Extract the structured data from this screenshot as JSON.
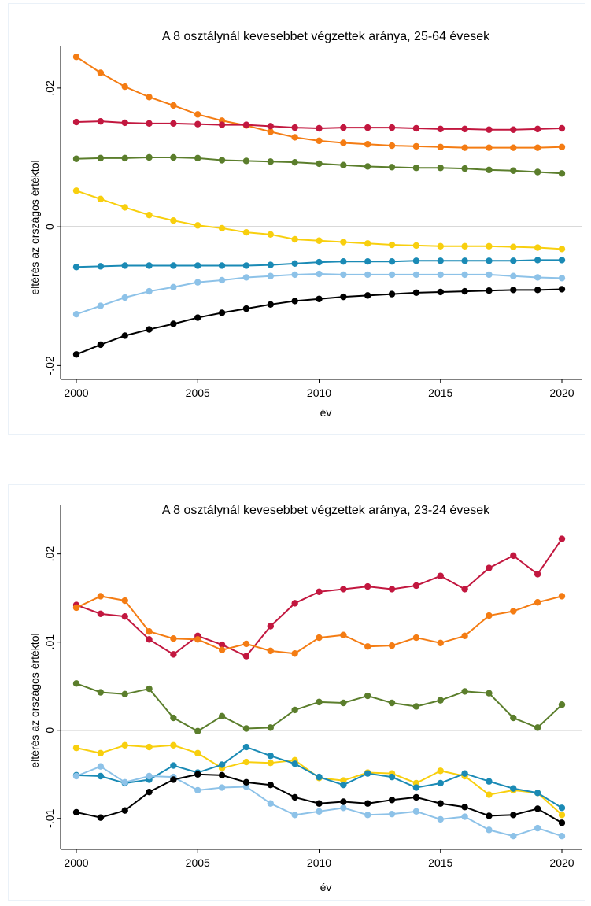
{
  "chart_data": [
    {
      "type": "line",
      "title": "A 8 osztálynál kevesebbet végzettek aránya, 25-64 évesek",
      "xlabel": "év",
      "ylabel": "eltérés az országos értéktol",
      "xlim": [
        2000,
        2020
      ],
      "ylim": [
        -0.022,
        0.026
      ],
      "xticks": [
        2000,
        2005,
        2010,
        2015,
        2020
      ],
      "yticks": [
        -0.02,
        0,
        0.02
      ],
      "yticklabels": [
        "-.02",
        "0",
        ".02"
      ],
      "zero_line": true,
      "grid": false,
      "x": [
        2000,
        2001,
        2002,
        2003,
        2004,
        2005,
        2006,
        2007,
        2008,
        2009,
        2010,
        2011,
        2012,
        2013,
        2014,
        2015,
        2016,
        2017,
        2018,
        2019,
        2020
      ],
      "series": [
        {
          "color": "#f47c13",
          "values": [
            0.0245,
            0.0222,
            0.0202,
            0.0187,
            0.0175,
            0.0162,
            0.0153,
            0.0146,
            0.0137,
            0.0129,
            0.0124,
            0.0121,
            0.0119,
            0.0117,
            0.0116,
            0.0115,
            0.0114,
            0.0114,
            0.0114,
            0.0114,
            0.0115
          ]
        },
        {
          "color": "#c2173f",
          "values": [
            0.0151,
            0.0152,
            0.015,
            0.0149,
            0.0149,
            0.0148,
            0.0147,
            0.0147,
            0.0145,
            0.0143,
            0.0142,
            0.0143,
            0.0143,
            0.0143,
            0.0142,
            0.0141,
            0.0141,
            0.014,
            0.014,
            0.0141,
            0.0142
          ]
        },
        {
          "color": "#5b7e2c",
          "values": [
            0.0098,
            0.0099,
            0.0099,
            0.01,
            0.01,
            0.0099,
            0.0096,
            0.0095,
            0.0094,
            0.0093,
            0.0091,
            0.0089,
            0.0087,
            0.0086,
            0.0085,
            0.0085,
            0.0084,
            0.0082,
            0.0081,
            0.0079,
            0.0077
          ]
        },
        {
          "color": "#f8cf0e",
          "values": [
            0.0052,
            0.004,
            0.0028,
            0.0017,
            0.0009,
            0.0002,
            -0.0002,
            -0.0008,
            -0.0011,
            -0.0018,
            -0.002,
            -0.0022,
            -0.0024,
            -0.0026,
            -0.0027,
            -0.0028,
            -0.0028,
            -0.0028,
            -0.0029,
            -0.003,
            -0.0032
          ]
        },
        {
          "color": "#1a8ab5",
          "values": [
            -0.0058,
            -0.0057,
            -0.0056,
            -0.0056,
            -0.0056,
            -0.0056,
            -0.0056,
            -0.0056,
            -0.0055,
            -0.0053,
            -0.0051,
            -0.005,
            -0.005,
            -0.005,
            -0.0049,
            -0.0049,
            -0.0049,
            -0.0049,
            -0.0049,
            -0.0048,
            -0.0048
          ]
        },
        {
          "color": "#8dc2e8",
          "values": [
            -0.0126,
            -0.0114,
            -0.0102,
            -0.0093,
            -0.0087,
            -0.008,
            -0.0077,
            -0.0073,
            -0.0071,
            -0.0069,
            -0.0068,
            -0.0069,
            -0.0069,
            -0.0069,
            -0.0069,
            -0.0069,
            -0.0069,
            -0.0069,
            -0.0071,
            -0.0073,
            -0.0074
          ]
        },
        {
          "color": "#000000",
          "values": [
            -0.0184,
            -0.017,
            -0.0157,
            -0.0148,
            -0.014,
            -0.0131,
            -0.0124,
            -0.0118,
            -0.0112,
            -0.0107,
            -0.0104,
            -0.0101,
            -0.0099,
            -0.0097,
            -0.0095,
            -0.0094,
            -0.0093,
            -0.0092,
            -0.0091,
            -0.0091,
            -0.009
          ]
        }
      ]
    },
    {
      "type": "line",
      "title": "A 8 osztálynál kevesebbet végzettek aránya, 23-24 évesek",
      "xlabel": "év",
      "ylabel": "eltérés az országos értéktol",
      "xlim": [
        2000,
        2020
      ],
      "ylim": [
        -0.0135,
        0.0255
      ],
      "xticks": [
        2000,
        2005,
        2010,
        2015,
        2020
      ],
      "yticks": [
        -0.01,
        0,
        0.01,
        0.02
      ],
      "yticklabels": [
        "-.01",
        "0",
        ".01",
        ".02"
      ],
      "zero_line": true,
      "grid": false,
      "x": [
        2000,
        2001,
        2002,
        2003,
        2004,
        2005,
        2006,
        2007,
        2008,
        2009,
        2010,
        2011,
        2012,
        2013,
        2014,
        2015,
        2016,
        2017,
        2018,
        2019,
        2020
      ],
      "series": [
        {
          "color": "#c2173f",
          "values": [
            0.0142,
            0.0132,
            0.0129,
            0.0103,
            0.0086,
            0.0107,
            0.0097,
            0.0084,
            0.0118,
            0.0144,
            0.0157,
            0.016,
            0.0163,
            0.016,
            0.0164,
            0.0175,
            0.016,
            0.0184,
            0.0198,
            0.0177,
            0.0217
          ]
        },
        {
          "color": "#f47c13",
          "values": [
            0.0139,
            0.0152,
            0.0147,
            0.0112,
            0.0104,
            0.0103,
            0.0091,
            0.0098,
            0.009,
            0.0087,
            0.0105,
            0.0108,
            0.0095,
            0.0096,
            0.0105,
            0.0099,
            0.0107,
            0.013,
            0.0135,
            0.0145,
            0.0152
          ]
        },
        {
          "color": "#5b7e2c",
          "values": [
            0.0053,
            0.0043,
            0.0041,
            0.0047,
            0.0014,
            -0.0001,
            0.0016,
            0.0002,
            0.0003,
            0.0023,
            0.0032,
            0.0031,
            0.0039,
            0.0031,
            0.0027,
            0.0034,
            0.0044,
            0.0042,
            0.0014,
            0.0003,
            0.0029
          ]
        },
        {
          "color": "#f8cf0e",
          "values": [
            -0.002,
            -0.0026,
            -0.0017,
            -0.0019,
            -0.0017,
            -0.0026,
            -0.0043,
            -0.0036,
            -0.0037,
            -0.0034,
            -0.0054,
            -0.0057,
            -0.0048,
            -0.0049,
            -0.006,
            -0.0046,
            -0.0052,
            -0.0073,
            -0.0068,
            -0.0071,
            -0.0096
          ]
        },
        {
          "color": "#1a8ab5",
          "values": [
            -0.0051,
            -0.0052,
            -0.006,
            -0.0056,
            -0.004,
            -0.0048,
            -0.0039,
            -0.0019,
            -0.0029,
            -0.0038,
            -0.0053,
            -0.0062,
            -0.0049,
            -0.0053,
            -0.0065,
            -0.006,
            -0.0049,
            -0.0058,
            -0.0066,
            -0.0071,
            -0.0088
          ]
        },
        {
          "color": "#8dc2e8",
          "values": [
            -0.0052,
            -0.0041,
            -0.0059,
            -0.0052,
            -0.0053,
            -0.0068,
            -0.0065,
            -0.0064,
            -0.0083,
            -0.0096,
            -0.0092,
            -0.0088,
            -0.0096,
            -0.0095,
            -0.0092,
            -0.0101,
            -0.0098,
            -0.0113,
            -0.012,
            -0.0111,
            -0.012
          ]
        },
        {
          "color": "#000000",
          "values": [
            -0.0093,
            -0.0099,
            -0.0091,
            -0.007,
            -0.0056,
            -0.005,
            -0.0051,
            -0.0059,
            -0.0062,
            -0.0076,
            -0.0083,
            -0.0081,
            -0.0083,
            -0.0079,
            -0.0076,
            -0.0083,
            -0.0087,
            -0.0097,
            -0.0096,
            -0.0089,
            -0.0105
          ]
        }
      ]
    }
  ]
}
